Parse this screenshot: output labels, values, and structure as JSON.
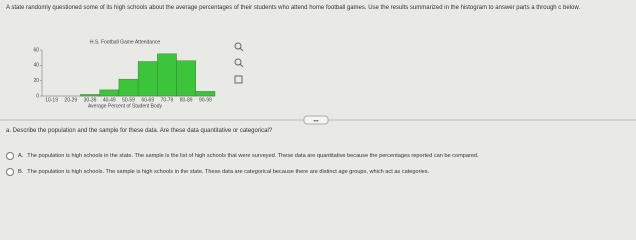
{
  "intro": "A state randomly questioned some of its high schools about the average percentages of their students who attend home football games. Use the results summarized in the histogram to answer parts a through c below.",
  "chart_data": {
    "type": "bar",
    "title": "H.S. Football Game Attendance",
    "x_label": "Average Percent of Student Body",
    "categories": [
      "10-19",
      "20-29",
      "30-39",
      "40-49",
      "50-59",
      "60-69",
      "70-79",
      "80-89",
      "90-99"
    ],
    "values": [
      0,
      0,
      2,
      8,
      22,
      45,
      55,
      46,
      6
    ],
    "color": "#3cc43c",
    "ylim": [
      0,
      60
    ],
    "yticks": [
      0,
      20,
      40,
      60
    ]
  },
  "question": "a. Describe the population and the sample for these data. Are these data quantitative or categorical?",
  "options": [
    {
      "letter": "A.",
      "text": "The population is high schools in the state. The sample is the list of high schools that were surveyed. These data are quantitative because the percentages reported can be compared."
    },
    {
      "letter": "B.",
      "text": "The population is high schools. The sample is high schools in the state. These data are categorical because there are distinct age groups, which act as categories."
    }
  ]
}
